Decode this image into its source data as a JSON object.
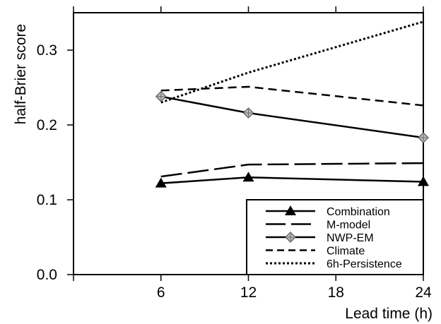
{
  "chart_data": {
    "type": "line",
    "xlabel": "Lead time  (h)",
    "ylabel": "half-Brier score",
    "xlim": [
      0,
      24
    ],
    "ylim": [
      0,
      0.35
    ],
    "x_ticks": [
      6,
      12,
      18,
      24
    ],
    "y_ticks": [
      0.0,
      0.1,
      0.2,
      0.3
    ],
    "y_tick_labels": [
      "0.0",
      "0.1",
      "0.2",
      "0.3"
    ],
    "grid": false,
    "legend_position": "bottom-right",
    "series": [
      {
        "name": "Combination",
        "style": "solid",
        "marker": "triangle",
        "color": "#000000",
        "x": [
          6,
          12,
          24
        ],
        "values": [
          0.122,
          0.13,
          0.124
        ]
      },
      {
        "name": "M-model",
        "style": "longdash",
        "marker": "none",
        "color": "#000000",
        "x": [
          6,
          12,
          24
        ],
        "values": [
          0.131,
          0.147,
          0.149
        ]
      },
      {
        "name": "NWP-EM",
        "style": "solid",
        "marker": "diamond",
        "color": "#000000",
        "x": [
          6,
          12,
          24
        ],
        "values": [
          0.238,
          0.216,
          0.183
        ]
      },
      {
        "name": "Climate",
        "style": "dashed",
        "marker": "none",
        "color": "#000000",
        "x": [
          6,
          12,
          24
        ],
        "values": [
          0.246,
          0.251,
          0.226
        ]
      },
      {
        "name": "6h-Persistence",
        "style": "dotted",
        "marker": "none",
        "color": "#000000",
        "x": [
          6,
          12,
          24
        ],
        "values": [
          0.23,
          0.27,
          0.338
        ]
      }
    ]
  }
}
